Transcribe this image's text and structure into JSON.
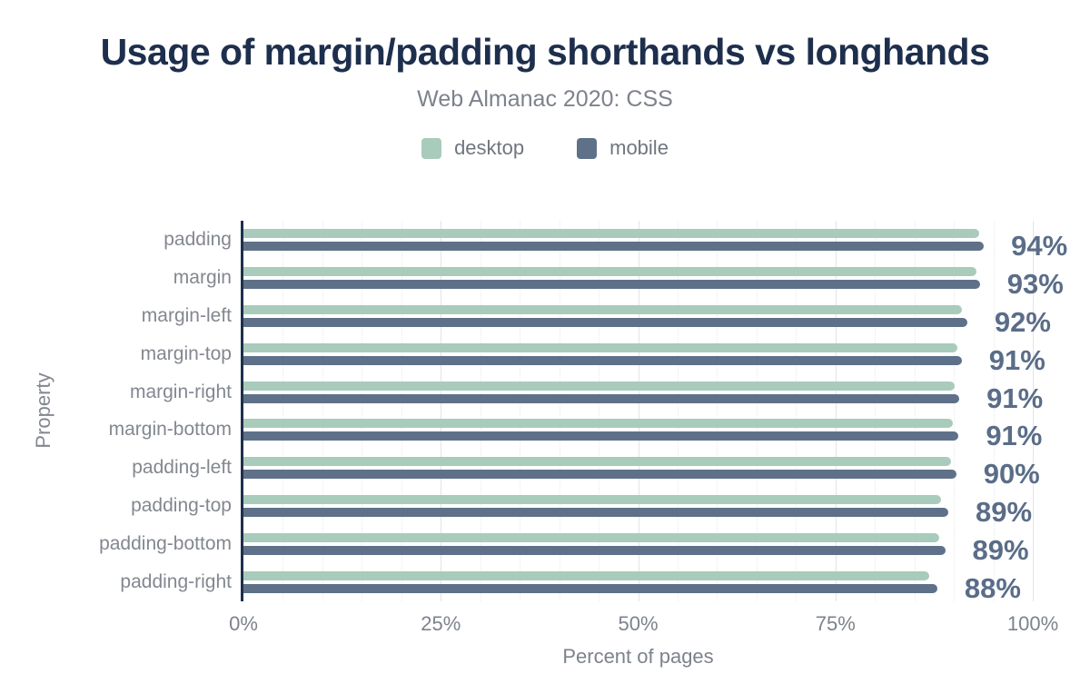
{
  "header": {
    "title": "Usage of margin/padding shorthands vs longhands",
    "subtitle": "Web Almanac 2020: CSS"
  },
  "legend": {
    "items": [
      {
        "label": "desktop",
        "color": "#a9cbbb"
      },
      {
        "label": "mobile",
        "color": "#5e7189"
      }
    ]
  },
  "chart_data": {
    "type": "bar",
    "orientation": "horizontal",
    "title": "Usage of margin/padding shorthands vs longhands",
    "subtitle": "Web Almanac 2020: CSS",
    "xlabel": "Percent of pages",
    "ylabel": "Property",
    "xlim": [
      0,
      100
    ],
    "x_ticks": [
      0,
      25,
      50,
      75,
      100
    ],
    "x_tick_labels": [
      "0%",
      "25%",
      "50%",
      "75%",
      "100%"
    ],
    "grid": {
      "minor_step": 5,
      "major_step": 25,
      "minor_style": "dotted",
      "major_style": "solid"
    },
    "legend_position": "top",
    "categories": [
      "padding",
      "margin",
      "margin-left",
      "margin-top",
      "margin-right",
      "margin-bottom",
      "padding-left",
      "padding-top",
      "padding-bottom",
      "padding-right"
    ],
    "series": [
      {
        "name": "desktop",
        "color": "#a9cbbb",
        "values": [
          93.2,
          92.9,
          91.0,
          90.4,
          90.1,
          89.9,
          89.7,
          88.4,
          88.1,
          86.9
        ]
      },
      {
        "name": "mobile",
        "color": "#5e7189",
        "values": [
          93.8,
          93.3,
          91.7,
          91.0,
          90.7,
          90.6,
          90.3,
          89.3,
          88.9,
          87.9
        ]
      }
    ],
    "value_labels": [
      "94%",
      "93%",
      "92%",
      "91%",
      "91%",
      "91%",
      "90%",
      "89%",
      "89%",
      "88%"
    ]
  },
  "colors": {
    "title": "#1e2f4d",
    "axis_line": "#1e2f4d",
    "muted_text": "#7d828c",
    "category_label": "#83878f",
    "value_label": "#5a6d88",
    "grid_minor": "#eaeaea",
    "grid_major": "#e4e4e4",
    "background": "#ffffff"
  }
}
